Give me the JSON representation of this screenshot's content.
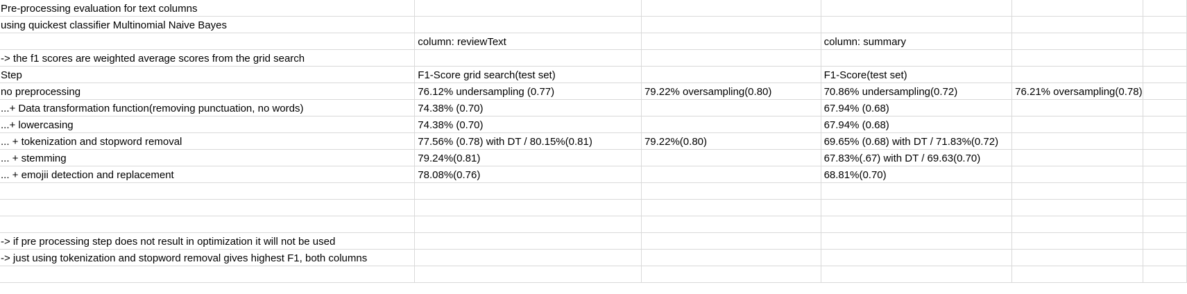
{
  "sheet": {
    "rows": [
      [
        "Pre-processing evaluation for text columns",
        "",
        "",
        "",
        "",
        ""
      ],
      [
        "using quickest classifier Multinomial Naive Bayes",
        "",
        "",
        "",
        "",
        ""
      ],
      [
        "",
        "column: reviewText",
        "",
        "column: summary",
        "",
        ""
      ],
      [
        " -> the f1 scores are weighted average scores from the grid search",
        "",
        "",
        "",
        "",
        ""
      ],
      [
        "Step",
        "F1-Score grid search(test set)",
        "",
        "F1-Score(test set)",
        "",
        ""
      ],
      [
        "no preprocessing",
        "76.12% undersampling (0.77)",
        "79.22% oversampling(0.80)",
        "70.86% undersampling(0.72)",
        "76.21% oversampling(0.78)",
        ""
      ],
      [
        "...+ Data transformation function(removing punctuation, no words)",
        "74.38% (0.70)",
        "",
        "67.94% (0.68)",
        "",
        ""
      ],
      [
        "...+ lowercasing",
        "74.38% (0.70)",
        "",
        "67.94% (0.68)",
        "",
        ""
      ],
      [
        "... + tokenization and stopword removal",
        "77.56% (0.78) with DT / 80.15%(0.81)",
        "79.22%(0.80)",
        "69.65% (0.68) with DT / 71.83%(0.72)",
        "",
        ""
      ],
      [
        "... + stemming",
        "79.24%(0.81)",
        "",
        "67.83%(.67) with DT / 69.63(0.70)",
        "",
        ""
      ],
      [
        "... + emojii detection and replacement",
        "78.08%(0.76)",
        "",
        "68.81%(0.70)",
        "",
        ""
      ],
      [
        "",
        "",
        "",
        "",
        "",
        ""
      ],
      [
        "",
        "",
        "",
        "",
        "",
        ""
      ],
      [
        "",
        "",
        "",
        "",
        "",
        ""
      ],
      [
        " -> if pre processing step does not result in optimization it will not be used",
        "",
        "",
        "",
        "",
        ""
      ],
      [
        " -> just using tokenization and stopword removal gives highest F1, both columns",
        "",
        "",
        "",
        "",
        ""
      ],
      [
        "",
        "",
        "",
        "",
        "",
        ""
      ]
    ]
  }
}
